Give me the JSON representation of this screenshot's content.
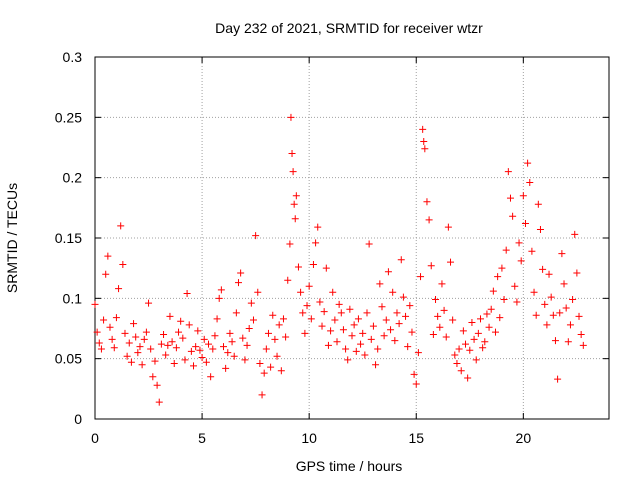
{
  "chart_data": {
    "type": "scatter",
    "title": "Day 232 of 2021, SRMTID for receiver wtzr",
    "xlabel": "GPS time / hours",
    "ylabel": "SRMTID / TECUs",
    "xlim": [
      0,
      24
    ],
    "ylim": [
      0,
      0.3
    ],
    "xticks": [
      0,
      5,
      10,
      15,
      20
    ],
    "xtick_labels": [
      "0",
      "5",
      "10",
      "15",
      "20"
    ],
    "yticks": [
      0,
      0.05,
      0.1,
      0.15,
      0.2,
      0.25,
      0.3
    ],
    "ytick_labels": [
      "0",
      "0.05",
      "0.1",
      "0.15",
      "0.2",
      "0.25",
      "0.3"
    ],
    "grid": true,
    "marker": "+",
    "series": [
      {
        "name": "SRMTID",
        "color": "#ff0000",
        "points": [
          [
            0.0,
            0.095
          ],
          [
            0.1,
            0.072
          ],
          [
            0.2,
            0.063
          ],
          [
            0.3,
            0.058
          ],
          [
            0.4,
            0.082
          ],
          [
            0.5,
            0.12
          ],
          [
            0.6,
            0.135
          ],
          [
            0.7,
            0.076
          ],
          [
            0.8,
            0.066
          ],
          [
            0.9,
            0.059
          ],
          [
            1.0,
            0.084
          ],
          [
            1.1,
            0.108
          ],
          [
            1.2,
            0.16
          ],
          [
            1.3,
            0.128
          ],
          [
            1.4,
            0.071
          ],
          [
            1.5,
            0.052
          ],
          [
            1.6,
            0.063
          ],
          [
            1.7,
            0.047
          ],
          [
            1.8,
            0.079
          ],
          [
            1.9,
            0.068
          ],
          [
            2.0,
            0.055
          ],
          [
            2.1,
            0.06
          ],
          [
            2.2,
            0.045
          ],
          [
            2.3,
            0.066
          ],
          [
            2.4,
            0.072
          ],
          [
            2.5,
            0.096
          ],
          [
            2.6,
            0.058
          ],
          [
            2.7,
            0.035
          ],
          [
            2.8,
            0.048
          ],
          [
            2.9,
            0.028
          ],
          [
            3.0,
            0.014
          ],
          [
            3.1,
            0.062
          ],
          [
            3.2,
            0.07
          ],
          [
            3.3,
            0.053
          ],
          [
            3.4,
            0.061
          ],
          [
            3.5,
            0.085
          ],
          [
            3.6,
            0.064
          ],
          [
            3.7,
            0.046
          ],
          [
            3.8,
            0.059
          ],
          [
            3.9,
            0.072
          ],
          [
            4.0,
            0.081
          ],
          [
            4.1,
            0.067
          ],
          [
            4.2,
            0.049
          ],
          [
            4.3,
            0.104
          ],
          [
            4.4,
            0.078
          ],
          [
            4.5,
            0.056
          ],
          [
            4.6,
            0.044
          ],
          [
            4.7,
            0.06
          ],
          [
            4.8,
            0.073
          ],
          [
            4.9,
            0.057
          ],
          [
            5.0,
            0.051
          ],
          [
            5.1,
            0.066
          ],
          [
            5.2,
            0.047
          ],
          [
            5.3,
            0.062
          ],
          [
            5.4,
            0.035
          ],
          [
            5.5,
            0.058
          ],
          [
            5.6,
            0.069
          ],
          [
            5.7,
            0.083
          ],
          [
            5.8,
            0.1
          ],
          [
            5.9,
            0.107
          ],
          [
            6.0,
            0.06
          ],
          [
            6.1,
            0.042
          ],
          [
            6.2,
            0.055
          ],
          [
            6.3,
            0.071
          ],
          [
            6.4,
            0.064
          ],
          [
            6.5,
            0.052
          ],
          [
            6.6,
            0.088
          ],
          [
            6.7,
            0.113
          ],
          [
            6.8,
            0.121
          ],
          [
            6.9,
            0.067
          ],
          [
            7.0,
            0.049
          ],
          [
            7.1,
            0.061
          ],
          [
            7.2,
            0.075
          ],
          [
            7.3,
            0.096
          ],
          [
            7.4,
            0.082
          ],
          [
            7.5,
            0.152
          ],
          [
            7.6,
            0.105
          ],
          [
            7.7,
            0.046
          ],
          [
            7.8,
            0.02
          ],
          [
            7.9,
            0.038
          ],
          [
            8.0,
            0.058
          ],
          [
            8.1,
            0.071
          ],
          [
            8.2,
            0.043
          ],
          [
            8.3,
            0.086
          ],
          [
            8.4,
            0.066
          ],
          [
            8.5,
            0.052
          ],
          [
            8.6,
            0.078
          ],
          [
            8.7,
            0.04
          ],
          [
            8.8,
            0.083
          ],
          [
            8.9,
            0.068
          ],
          [
            9.0,
            0.115
          ],
          [
            9.1,
            0.145
          ],
          [
            9.15,
            0.25
          ],
          [
            9.2,
            0.22
          ],
          [
            9.25,
            0.205
          ],
          [
            9.3,
            0.178
          ],
          [
            9.35,
            0.166
          ],
          [
            9.4,
            0.185
          ],
          [
            9.5,
            0.126
          ],
          [
            9.6,
            0.105
          ],
          [
            9.7,
            0.088
          ],
          [
            9.8,
            0.071
          ],
          [
            9.9,
            0.094
          ],
          [
            10.0,
            0.11
          ],
          [
            10.1,
            0.083
          ],
          [
            10.2,
            0.128
          ],
          [
            10.3,
            0.146
          ],
          [
            10.4,
            0.159
          ],
          [
            10.5,
            0.097
          ],
          [
            10.6,
            0.077
          ],
          [
            10.7,
            0.089
          ],
          [
            10.8,
            0.125
          ],
          [
            10.9,
            0.061
          ],
          [
            11.0,
            0.073
          ],
          [
            11.1,
            0.105
          ],
          [
            11.2,
            0.082
          ],
          [
            11.3,
            0.064
          ],
          [
            11.4,
            0.095
          ],
          [
            11.5,
            0.088
          ],
          [
            11.6,
            0.074
          ],
          [
            11.7,
            0.058
          ],
          [
            11.8,
            0.049
          ],
          [
            11.9,
            0.091
          ],
          [
            12.0,
            0.069
          ],
          [
            12.1,
            0.078
          ],
          [
            12.2,
            0.056
          ],
          [
            12.3,
            0.083
          ],
          [
            12.4,
            0.062
          ],
          [
            12.5,
            0.071
          ],
          [
            12.6,
            0.053
          ],
          [
            12.7,
            0.088
          ],
          [
            12.8,
            0.145
          ],
          [
            12.9,
            0.066
          ],
          [
            13.0,
            0.077
          ],
          [
            13.1,
            0.045
          ],
          [
            13.2,
            0.058
          ],
          [
            13.3,
            0.112
          ],
          [
            13.4,
            0.093
          ],
          [
            13.5,
            0.069
          ],
          [
            13.6,
            0.082
          ],
          [
            13.7,
            0.122
          ],
          [
            13.8,
            0.074
          ],
          [
            13.9,
            0.105
          ],
          [
            14.0,
            0.065
          ],
          [
            14.1,
            0.088
          ],
          [
            14.2,
            0.079
          ],
          [
            14.3,
            0.132
          ],
          [
            14.4,
            0.101
          ],
          [
            14.5,
            0.085
          ],
          [
            14.6,
            0.06
          ],
          [
            14.7,
            0.094
          ],
          [
            14.8,
            0.072
          ],
          [
            14.9,
            0.037
          ],
          [
            15.0,
            0.029
          ],
          [
            15.1,
            0.055
          ],
          [
            15.2,
            0.118
          ],
          [
            15.3,
            0.24
          ],
          [
            15.35,
            0.23
          ],
          [
            15.4,
            0.224
          ],
          [
            15.5,
            0.18
          ],
          [
            15.6,
            0.165
          ],
          [
            15.7,
            0.127
          ],
          [
            15.8,
            0.07
          ],
          [
            15.9,
            0.099
          ],
          [
            16.0,
            0.085
          ],
          [
            16.1,
            0.076
          ],
          [
            16.2,
            0.112
          ],
          [
            16.3,
            0.09
          ],
          [
            16.4,
            0.068
          ],
          [
            16.5,
            0.159
          ],
          [
            16.6,
            0.13
          ],
          [
            16.7,
            0.082
          ],
          [
            16.8,
            0.053
          ],
          [
            16.9,
            0.046
          ],
          [
            17.0,
            0.058
          ],
          [
            17.1,
            0.04
          ],
          [
            17.2,
            0.073
          ],
          [
            17.3,
            0.062
          ],
          [
            17.4,
            0.034
          ],
          [
            17.5,
            0.057
          ],
          [
            17.6,
            0.08
          ],
          [
            17.7,
            0.066
          ],
          [
            17.8,
            0.049
          ],
          [
            17.9,
            0.071
          ],
          [
            18.0,
            0.083
          ],
          [
            18.1,
            0.059
          ],
          [
            18.2,
            0.064
          ],
          [
            18.3,
            0.087
          ],
          [
            18.4,
            0.076
          ],
          [
            18.5,
            0.091
          ],
          [
            18.6,
            0.106
          ],
          [
            18.7,
            0.072
          ],
          [
            18.8,
            0.118
          ],
          [
            18.9,
            0.084
          ],
          [
            19.0,
            0.125
          ],
          [
            19.1,
            0.099
          ],
          [
            19.2,
            0.14
          ],
          [
            19.3,
            0.205
          ],
          [
            19.4,
            0.183
          ],
          [
            19.5,
            0.168
          ],
          [
            19.6,
            0.11
          ],
          [
            19.7,
            0.097
          ],
          [
            19.8,
            0.146
          ],
          [
            19.9,
            0.131
          ],
          [
            20.0,
            0.185
          ],
          [
            20.1,
            0.162
          ],
          [
            20.2,
            0.212
          ],
          [
            20.3,
            0.196
          ],
          [
            20.4,
            0.139
          ],
          [
            20.5,
            0.105
          ],
          [
            20.6,
            0.086
          ],
          [
            20.7,
            0.178
          ],
          [
            20.8,
            0.157
          ],
          [
            20.9,
            0.124
          ],
          [
            21.0,
            0.095
          ],
          [
            21.1,
            0.078
          ],
          [
            21.2,
            0.12
          ],
          [
            21.3,
            0.101
          ],
          [
            21.4,
            0.086
          ],
          [
            21.5,
            0.065
          ],
          [
            21.6,
            0.033
          ],
          [
            21.7,
            0.088
          ],
          [
            21.8,
            0.137
          ],
          [
            21.9,
            0.112
          ],
          [
            22.0,
            0.092
          ],
          [
            22.1,
            0.064
          ],
          [
            22.2,
            0.078
          ],
          [
            22.3,
            0.099
          ],
          [
            22.4,
            0.153
          ],
          [
            22.5,
            0.121
          ],
          [
            22.6,
            0.085
          ],
          [
            22.7,
            0.07
          ],
          [
            22.8,
            0.061
          ]
        ]
      }
    ]
  }
}
